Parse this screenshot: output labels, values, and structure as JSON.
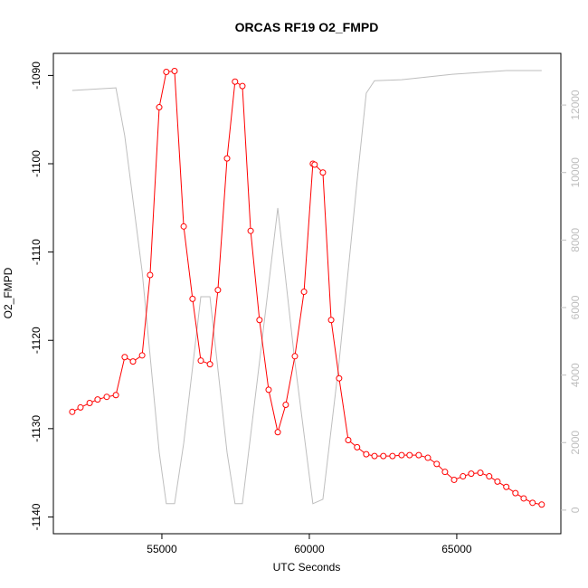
{
  "chart_data": {
    "type": "line",
    "title": "ORCAS RF19 O2_FMPD",
    "x_label": "UTC Seconds",
    "y_label": "O2_FMPD",
    "xlim": [
      51320,
      68530
    ],
    "ylim": [
      -1141.9,
      -1087.5
    ],
    "y2lim": [
      -700,
      13530
    ],
    "xticks": [
      55000,
      60000,
      65000
    ],
    "yticks": [
      -1090,
      -1100,
      -1110,
      -1120,
      -1130,
      -1140
    ],
    "y2ticks": [
      0,
      2000,
      4000,
      6000,
      8000,
      10000,
      12000
    ],
    "series": [
      {
        "color": "#ff0000",
        "marker": "circle",
        "x": [
          51960,
          52240,
          52550,
          52820,
          53130,
          53440,
          53740,
          54020,
          54330,
          54600,
          54910,
          55150,
          55430,
          55740,
          56040,
          56320,
          56630,
          56900,
          57210,
          57480,
          57730,
          58010,
          58310,
          58620,
          58930,
          59200,
          59510,
          59820,
          60120,
          60180,
          60460,
          60740,
          61010,
          61320,
          61620,
          61930,
          62210,
          62510,
          62820,
          63130,
          63400,
          63710,
          64020,
          64320,
          64600,
          64910,
          65210,
          65490,
          65800,
          66100,
          66380,
          66680,
          66990,
          67270,
          67570,
          67880
        ],
        "values": [
          -1128.1,
          -1127.6,
          -1127.1,
          -1126.7,
          -1126.4,
          -1126.2,
          -1121.9,
          -1122.4,
          -1121.7,
          -1112.6,
          -1093.6,
          -1089.6,
          -1089.5,
          -1107.1,
          -1115.3,
          -1122.3,
          -1122.7,
          -1114.3,
          -1099.4,
          -1090.7,
          -1091.2,
          -1107.6,
          -1117.7,
          -1125.6,
          -1130.4,
          -1127.3,
          -1121.8,
          -1114.5,
          -1100.0,
          -1100.1,
          -1101.0,
          -1117.7,
          -1124.3,
          -1131.3,
          -1132.1,
          -1132.9,
          -1133.1,
          -1133.1,
          -1133.1,
          -1133.0,
          -1133.0,
          -1133.0,
          -1133.3,
          -1134.0,
          -1134.9,
          -1135.8,
          -1135.4,
          -1135.1,
          -1135.0,
          -1135.4,
          -1136.0,
          -1136.6,
          -1137.3,
          -1137.9,
          -1138.4,
          -1138.6
        ]
      },
      {
        "color": "#bebebe",
        "axis": "y2",
        "x": [
          51960,
          53440,
          53740,
          54330,
          54910,
          55150,
          55430,
          55740,
          56320,
          56630,
          57210,
          57480,
          57730,
          58310,
          58930,
          59510,
          60120,
          60460,
          61010,
          61620,
          61930,
          62210,
          63130,
          64850,
          66680,
          67880
        ],
        "values": [
          12430,
          12510,
          11090,
          7070,
          1710,
          190,
          190,
          1980,
          6320,
          6320,
          1710,
          190,
          190,
          4390,
          8950,
          4390,
          190,
          320,
          4390,
          9750,
          12350,
          12720,
          12750,
          12910,
          13020,
          13020
        ]
      }
    ]
  }
}
